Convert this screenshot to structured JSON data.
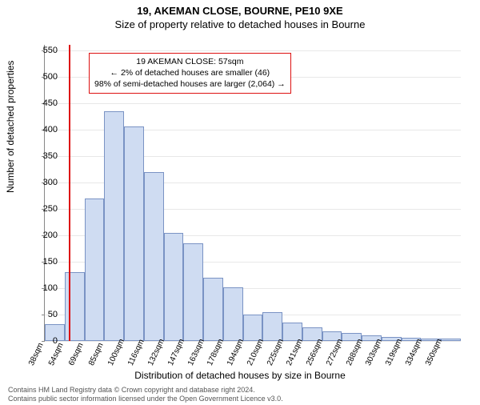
{
  "title_main": "19, AKEMAN CLOSE, BOURNE, PE10 9XE",
  "title_sub": "Size of property relative to detached houses in Bourne",
  "chart": {
    "type": "histogram",
    "ylabel": "Number of detached properties",
    "xlabel": "Distribution of detached houses by size in Bourne",
    "ylim": [
      0,
      560
    ],
    "yticks": [
      0,
      50,
      100,
      150,
      200,
      250,
      300,
      350,
      400,
      450,
      500,
      550
    ],
    "xtick_labels": [
      "38sqm",
      "54sqm",
      "69sqm",
      "85sqm",
      "100sqm",
      "116sqm",
      "132sqm",
      "147sqm",
      "163sqm",
      "178sqm",
      "194sqm",
      "210sqm",
      "225sqm",
      "241sqm",
      "256sqm",
      "272sqm",
      "288sqm",
      "303sqm",
      "319sqm",
      "334sqm",
      "350sqm"
    ],
    "bar_values": [
      32,
      130,
      270,
      435,
      405,
      320,
      205,
      185,
      120,
      102,
      50,
      55,
      35,
      26,
      18,
      15,
      10,
      8,
      6,
      5,
      4
    ],
    "bar_fill": "#cfdcf2",
    "bar_border": "#7a93c4",
    "grid_color": "#e8e8e8",
    "marker_line_color": "#d11",
    "marker_x_index": 1.2,
    "annotation": {
      "line1": "19 AKEMAN CLOSE: 57sqm",
      "line2": "← 2% of detached houses are smaller (46)",
      "line3": "98% of semi-detached houses are larger (2,064) →"
    }
  },
  "footer": {
    "line1": "Contains HM Land Registry data © Crown copyright and database right 2024.",
    "line2": "Contains public sector information licensed under the Open Government Licence v3.0."
  }
}
